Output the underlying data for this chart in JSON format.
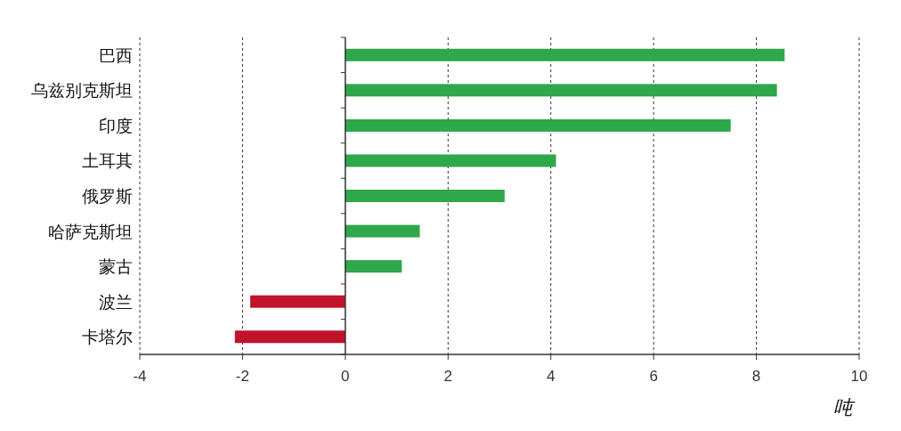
{
  "chart_data": {
    "type": "bar",
    "orientation": "horizontal",
    "xlabel": "吨",
    "categories": [
      "巴西",
      "乌兹别克斯坦",
      "印度",
      "土耳其",
      "俄罗斯",
      "哈萨克斯坦",
      "蒙古",
      "波兰",
      "卡塔尔"
    ],
    "values": [
      8.55,
      8.4,
      7.5,
      4.1,
      3.1,
      1.45,
      1.1,
      -1.85,
      -2.15
    ],
    "colors": [
      "#2ea84a",
      "#2ea84a",
      "#2ea84a",
      "#2ea84a",
      "#2ea84a",
      "#2ea84a",
      "#2ea84a",
      "#c0142a",
      "#c0142a"
    ],
    "xlim": [
      -4,
      10
    ],
    "xticks": [
      -4,
      -2,
      0,
      2,
      4,
      6,
      8,
      10
    ],
    "grid": "x"
  }
}
